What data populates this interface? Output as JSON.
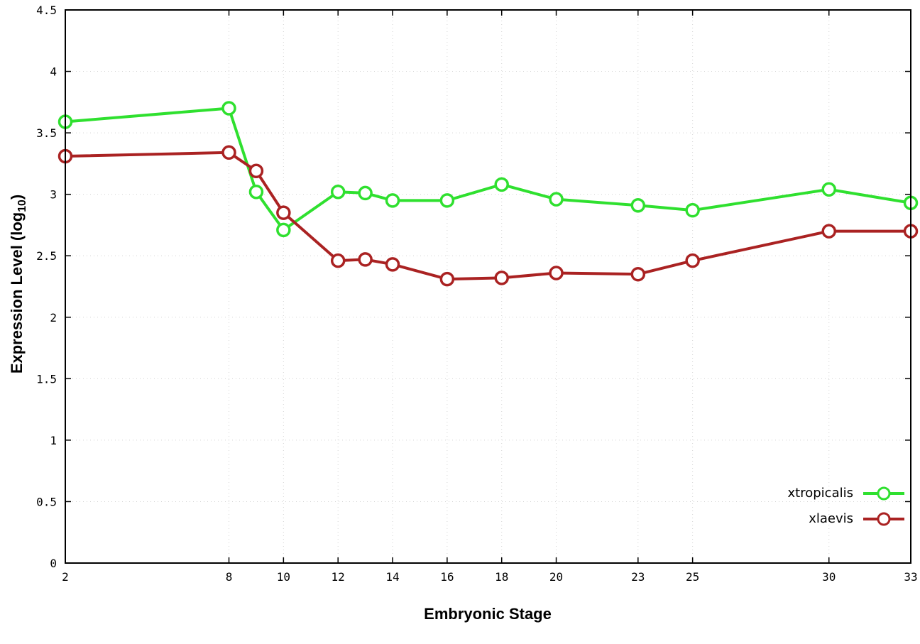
{
  "chart_data": {
    "type": "line",
    "x": [
      2,
      8,
      9,
      10,
      12,
      13,
      14,
      16,
      18,
      20,
      23,
      25,
      30,
      33
    ],
    "series": [
      {
        "name": "xtropicalis",
        "color": "#2fe02f",
        "values": [
          3.59,
          3.7,
          3.02,
          2.71,
          3.02,
          3.01,
          2.95,
          2.95,
          3.08,
          2.96,
          2.91,
          2.87,
          3.04,
          2.93
        ]
      },
      {
        "name": "xlaevis",
        "color": "#aa2222",
        "values": [
          3.31,
          3.34,
          3.19,
          2.85,
          2.46,
          2.47,
          2.43,
          2.31,
          2.32,
          2.36,
          2.35,
          2.46,
          2.7,
          2.7
        ]
      }
    ],
    "xlabel": "Embryonic Stage",
    "xlim": [
      2,
      33
    ],
    "ylim": [
      0,
      4.5
    ],
    "xticks": [
      2,
      8,
      10,
      12,
      14,
      16,
      18,
      20,
      23,
      25,
      30,
      33
    ],
    "yticks": [
      0,
      0.5,
      1,
      1.5,
      2,
      2.5,
      3,
      3.5,
      4,
      4.5
    ],
    "grid": true,
    "legend_position": "bottom-right"
  },
  "labels": {
    "ylabel_main": "Expression Level (log",
    "ylabel_sub": "10",
    "ylabel_close": ")"
  }
}
